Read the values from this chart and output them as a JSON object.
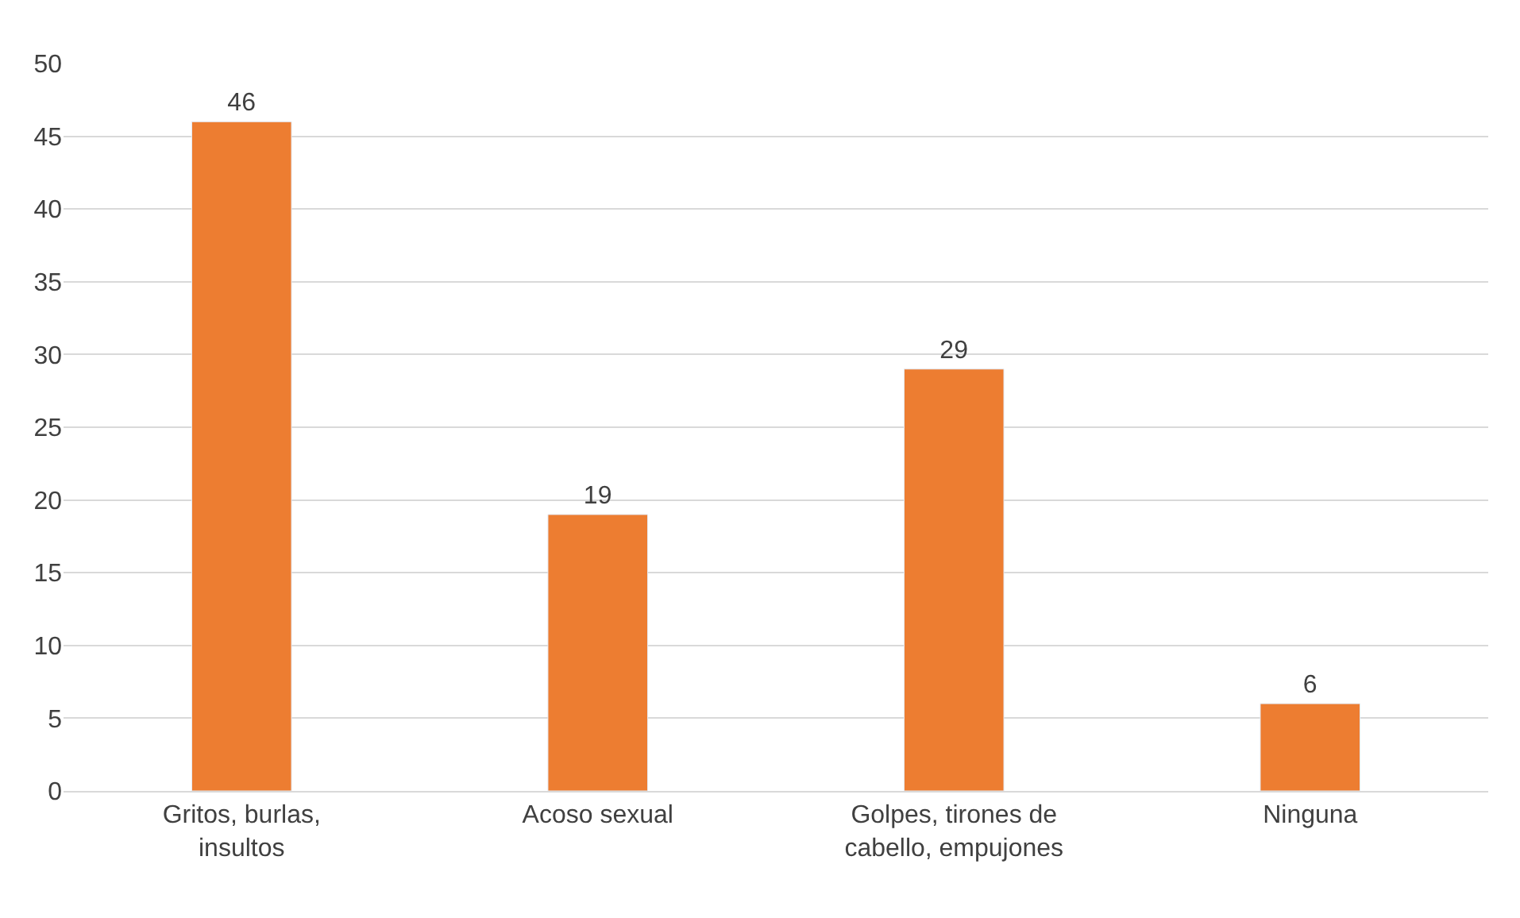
{
  "chart_data": {
    "type": "bar",
    "categories": [
      "Gritos, burlas, insultos",
      "Acoso sexual",
      "Golpes, tirones de cabello, empujones",
      "Ninguna"
    ],
    "values": [
      46,
      19,
      29,
      6
    ],
    "color": "#ed7d31",
    "ylim": [
      0,
      50
    ],
    "yticks": [
      0,
      5,
      10,
      15,
      20,
      25,
      30,
      35,
      40,
      45,
      50
    ],
    "grid": "y",
    "data_labels": true,
    "legend": false
  }
}
